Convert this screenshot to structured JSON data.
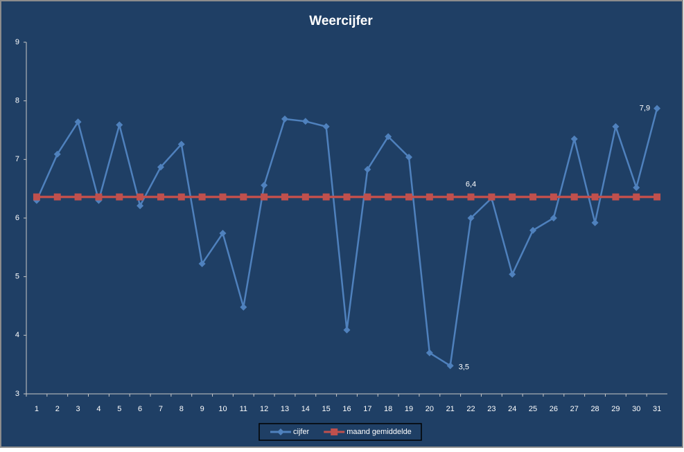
{
  "chart_data": {
    "type": "line",
    "title": "Weercijfer",
    "categories": [
      1,
      2,
      3,
      4,
      5,
      6,
      7,
      8,
      9,
      10,
      11,
      12,
      13,
      14,
      15,
      16,
      17,
      18,
      19,
      20,
      21,
      22,
      23,
      24,
      25,
      26,
      27,
      28,
      29,
      30,
      31
    ],
    "series": [
      {
        "name": "cijfer",
        "color": "#4f81bd",
        "marker": "diamond",
        "values": [
          6.3,
          7.09,
          7.64,
          6.3,
          7.59,
          6.21,
          6.87,
          7.26,
          5.22,
          5.74,
          4.48,
          6.56,
          7.69,
          7.65,
          7.56,
          4.09,
          6.83,
          7.39,
          7.04,
          3.7,
          3.48,
          6.0,
          6.34,
          5.04,
          5.79,
          6.0,
          7.35,
          5.92,
          7.56,
          6.52,
          7.87
        ],
        "value_labels": [
          null,
          null,
          null,
          null,
          null,
          null,
          null,
          null,
          null,
          null,
          null,
          null,
          null,
          null,
          null,
          null,
          null,
          null,
          null,
          null,
          "3,5",
          null,
          null,
          null,
          null,
          null,
          null,
          null,
          null,
          null,
          "7,9"
        ]
      },
      {
        "name": "maand gemiddelde",
        "color": "#c0504d",
        "marker": "square",
        "values": [
          6.36,
          6.36,
          6.36,
          6.36,
          6.36,
          6.36,
          6.36,
          6.36,
          6.36,
          6.36,
          6.36,
          6.36,
          6.36,
          6.36,
          6.36,
          6.36,
          6.36,
          6.36,
          6.36,
          6.36,
          6.36,
          6.36,
          6.36,
          6.36,
          6.36,
          6.36,
          6.36,
          6.36,
          6.36,
          6.36,
          6.36
        ],
        "value_labels": [
          null,
          null,
          null,
          null,
          null,
          null,
          null,
          null,
          null,
          null,
          null,
          null,
          null,
          null,
          null,
          null,
          null,
          null,
          null,
          null,
          null,
          "6,4",
          null,
          null,
          null,
          null,
          null,
          null,
          null,
          null,
          null
        ]
      }
    ],
    "ylim": [
      3,
      9
    ],
    "yticks": [
      3,
      4,
      5,
      6,
      7,
      8,
      9
    ],
    "grid": false,
    "legend": "bottom"
  }
}
